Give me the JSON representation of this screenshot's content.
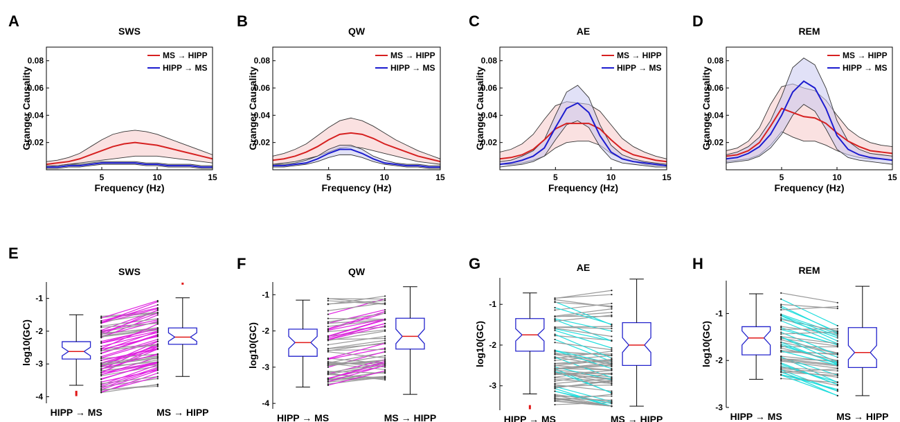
{
  "colors": {
    "ms_to_hipp": "#d62020",
    "hipp_to_ms": "#1c1ccf",
    "ms_fill": "#f5c8c8",
    "hipp_fill": "#c8c8f0",
    "box": "#2222cc",
    "median": "#e01818",
    "increase": "#e020e0",
    "decrease": "#22dddd",
    "neutral": "#999999",
    "outlier": "#e01818"
  },
  "chart_data": [
    {
      "type": "line",
      "panel": "A",
      "title": "SWS",
      "xlabel": "Frequency (Hz)",
      "ylabel": "Granger Causality",
      "xlim": [
        0,
        15
      ],
      "ylim": [
        0,
        0.09
      ],
      "xticks": [
        "5",
        "10",
        "15"
      ],
      "yticks": [
        "0.02",
        "0.04",
        "0.06",
        "0.08"
      ],
      "x": [
        0,
        1,
        2,
        3,
        4,
        5,
        6,
        7,
        8,
        9,
        10,
        11,
        12,
        13,
        14,
        15
      ],
      "series": [
        {
          "name": "MS → HIPP",
          "mean": [
            0.004,
            0.005,
            0.006,
            0.008,
            0.011,
            0.014,
            0.017,
            0.019,
            0.02,
            0.019,
            0.018,
            0.016,
            0.014,
            0.012,
            0.01,
            0.008
          ],
          "upper": [
            0.006,
            0.007,
            0.009,
            0.012,
            0.017,
            0.022,
            0.026,
            0.028,
            0.029,
            0.028,
            0.026,
            0.023,
            0.02,
            0.017,
            0.014,
            0.011
          ],
          "lower": [
            0.002,
            0.003,
            0.004,
            0.005,
            0.006,
            0.007,
            0.008,
            0.009,
            0.01,
            0.01,
            0.01,
            0.009,
            0.008,
            0.007,
            0.006,
            0.005
          ]
        },
        {
          "name": "HIPP → MS",
          "mean": [
            0.002,
            0.002,
            0.003,
            0.003,
            0.004,
            0.005,
            0.005,
            0.005,
            0.005,
            0.004,
            0.004,
            0.003,
            0.003,
            0.003,
            0.002,
            0.002
          ],
          "upper": [
            0.003,
            0.003,
            0.004,
            0.004,
            0.005,
            0.006,
            0.006,
            0.006,
            0.006,
            0.005,
            0.005,
            0.004,
            0.004,
            0.004,
            0.003,
            0.003
          ],
          "lower": [
            0.001,
            0.001,
            0.002,
            0.002,
            0.003,
            0.004,
            0.004,
            0.004,
            0.004,
            0.003,
            0.003,
            0.002,
            0.002,
            0.002,
            0.001,
            0.001
          ]
        }
      ]
    },
    {
      "type": "line",
      "panel": "B",
      "title": "QW",
      "xlabel": "Frequency (Hz)",
      "ylabel": "Granger Causality",
      "xlim": [
        0,
        15
      ],
      "ylim": [
        0,
        0.09
      ],
      "xticks": [
        "5",
        "10",
        "15"
      ],
      "yticks": [
        "0.02",
        "0.04",
        "0.06",
        "0.08"
      ],
      "x": [
        0,
        1,
        2,
        3,
        4,
        5,
        6,
        7,
        8,
        9,
        10,
        11,
        12,
        13,
        14,
        15
      ],
      "series": [
        {
          "name": "MS → HIPP",
          "mean": [
            0.007,
            0.008,
            0.01,
            0.013,
            0.017,
            0.022,
            0.026,
            0.027,
            0.026,
            0.023,
            0.019,
            0.016,
            0.013,
            0.01,
            0.008,
            0.006
          ],
          "upper": [
            0.01,
            0.012,
            0.015,
            0.019,
            0.025,
            0.031,
            0.036,
            0.038,
            0.036,
            0.032,
            0.027,
            0.022,
            0.018,
            0.014,
            0.011,
            0.008
          ],
          "lower": [
            0.004,
            0.005,
            0.006,
            0.008,
            0.01,
            0.013,
            0.016,
            0.017,
            0.016,
            0.014,
            0.012,
            0.01,
            0.008,
            0.006,
            0.005,
            0.004
          ]
        },
        {
          "name": "HIPP → MS",
          "mean": [
            0.003,
            0.003,
            0.004,
            0.005,
            0.008,
            0.012,
            0.015,
            0.015,
            0.012,
            0.008,
            0.005,
            0.004,
            0.003,
            0.003,
            0.002,
            0.002
          ],
          "upper": [
            0.004,
            0.004,
            0.005,
            0.007,
            0.01,
            0.015,
            0.018,
            0.018,
            0.015,
            0.01,
            0.007,
            0.005,
            0.004,
            0.004,
            0.003,
            0.003
          ],
          "lower": [
            0.002,
            0.002,
            0.003,
            0.004,
            0.006,
            0.009,
            0.011,
            0.011,
            0.009,
            0.006,
            0.004,
            0.003,
            0.002,
            0.002,
            0.001,
            0.001
          ]
        }
      ]
    },
    {
      "type": "line",
      "panel": "C",
      "title": "AE",
      "xlabel": "Frequency (Hz)",
      "ylabel": "Granger Causality",
      "xlim": [
        0,
        15
      ],
      "ylim": [
        0,
        0.09
      ],
      "xticks": [
        "5",
        "10",
        "15"
      ],
      "yticks": [
        "0.02",
        "0.04",
        "0.06",
        "0.08"
      ],
      "x": [
        0,
        1,
        2,
        3,
        4,
        5,
        6,
        7,
        8,
        9,
        10,
        11,
        12,
        13,
        14,
        15
      ],
      "series": [
        {
          "name": "MS → HIPP",
          "mean": [
            0.008,
            0.009,
            0.011,
            0.015,
            0.022,
            0.03,
            0.034,
            0.034,
            0.034,
            0.03,
            0.022,
            0.015,
            0.011,
            0.009,
            0.007,
            0.006
          ],
          "upper": [
            0.013,
            0.015,
            0.019,
            0.026,
            0.037,
            0.047,
            0.05,
            0.049,
            0.048,
            0.043,
            0.033,
            0.023,
            0.017,
            0.013,
            0.01,
            0.008
          ],
          "lower": [
            0.004,
            0.004,
            0.005,
            0.007,
            0.01,
            0.016,
            0.02,
            0.021,
            0.021,
            0.018,
            0.012,
            0.008,
            0.006,
            0.004,
            0.003,
            0.003
          ]
        },
        {
          "name": "HIPP → MS",
          "mean": [
            0.004,
            0.005,
            0.007,
            0.01,
            0.016,
            0.031,
            0.045,
            0.049,
            0.042,
            0.025,
            0.013,
            0.008,
            0.006,
            0.005,
            0.004,
            0.003
          ],
          "upper": [
            0.006,
            0.007,
            0.01,
            0.014,
            0.022,
            0.04,
            0.057,
            0.062,
            0.053,
            0.033,
            0.018,
            0.011,
            0.008,
            0.006,
            0.005,
            0.004
          ],
          "lower": [
            0.002,
            0.003,
            0.004,
            0.006,
            0.01,
            0.022,
            0.033,
            0.036,
            0.031,
            0.017,
            0.008,
            0.005,
            0.004,
            0.003,
            0.002,
            0.002
          ]
        }
      ]
    },
    {
      "type": "line",
      "panel": "D",
      "title": "REM",
      "xlabel": "Frequency (Hz)",
      "ylabel": "Granger Causality",
      "xlim": [
        0,
        15
      ],
      "ylim": [
        0,
        0.09
      ],
      "xticks": [
        "5",
        "10",
        "15"
      ],
      "yticks": [
        "0.02",
        "0.04",
        "0.06",
        "0.08"
      ],
      "x": [
        0,
        1,
        2,
        3,
        4,
        5,
        6,
        7,
        8,
        9,
        10,
        11,
        12,
        13,
        14,
        15
      ],
      "series": [
        {
          "name": "MS → HIPP",
          "mean": [
            0.01,
            0.011,
            0.014,
            0.02,
            0.032,
            0.045,
            0.042,
            0.039,
            0.038,
            0.034,
            0.027,
            0.021,
            0.017,
            0.014,
            0.013,
            0.012
          ],
          "upper": [
            0.014,
            0.016,
            0.021,
            0.031,
            0.048,
            0.061,
            0.063,
            0.06,
            0.058,
            0.051,
            0.04,
            0.03,
            0.024,
            0.02,
            0.018,
            0.017
          ],
          "lower": [
            0.006,
            0.007,
            0.008,
            0.011,
            0.018,
            0.028,
            0.024,
            0.021,
            0.021,
            0.018,
            0.014,
            0.011,
            0.009,
            0.008,
            0.008,
            0.007
          ]
        },
        {
          "name": "HIPP → MS",
          "mean": [
            0.008,
            0.009,
            0.012,
            0.017,
            0.026,
            0.04,
            0.057,
            0.065,
            0.06,
            0.045,
            0.025,
            0.015,
            0.011,
            0.009,
            0.008,
            0.007
          ],
          "upper": [
            0.011,
            0.013,
            0.017,
            0.024,
            0.036,
            0.054,
            0.075,
            0.082,
            0.077,
            0.06,
            0.036,
            0.021,
            0.015,
            0.012,
            0.011,
            0.01
          ],
          "lower": [
            0.005,
            0.006,
            0.007,
            0.01,
            0.016,
            0.026,
            0.04,
            0.048,
            0.043,
            0.03,
            0.015,
            0.009,
            0.007,
            0.006,
            0.005,
            0.004
          ]
        }
      ]
    },
    {
      "type": "box",
      "panel": "E",
      "title": "SWS",
      "ylabel": "log10(GC)",
      "ylim": [
        -4.2,
        -0.5
      ],
      "yticks": [
        "-1",
        "-2",
        "-3",
        "-4"
      ],
      "categories": [
        "HIPP → MS",
        "MS → HIPP"
      ],
      "boxes": [
        {
          "name": "HIPP → MS",
          "whisker_low": -3.65,
          "q1": -2.85,
          "median": -2.62,
          "q3": -2.32,
          "whisker_high": -1.5,
          "notch": 0.13,
          "outliers": [
            -3.85,
            -3.95,
            -3.9
          ]
        },
        {
          "name": "MS → HIPP",
          "whisker_low": -3.38,
          "q1": -2.4,
          "median": -2.18,
          "q3": -1.9,
          "whisker_high": -0.98,
          "notch": 0.13,
          "outliers": [
            -0.55
          ]
        }
      ],
      "pairs": {
        "count": 70,
        "seed": 11,
        "left_range": [
          -3.95,
          -1.5
        ],
        "mean_delta": 0.45,
        "spread": 0.35
      }
    },
    {
      "type": "box",
      "panel": "F",
      "title": "QW",
      "ylabel": "log10(GC)",
      "ylim": [
        -4.15,
        -0.65
      ],
      "yticks": [
        "-1",
        "-2",
        "-3",
        "-4"
      ],
      "categories": [
        "HIPP → MS",
        "MS → HIPP"
      ],
      "boxes": [
        {
          "name": "HIPP → MS",
          "whisker_low": -3.55,
          "q1": -2.7,
          "median": -2.32,
          "q3": -1.95,
          "whisker_high": -1.15,
          "notch": 0.17,
          "outliers": []
        },
        {
          "name": "MS → HIPP",
          "whisker_low": -3.75,
          "q1": -2.5,
          "median": -2.15,
          "q3": -1.65,
          "whisker_high": -0.78,
          "notch": 0.2,
          "outliers": []
        }
      ],
      "pairs": {
        "count": 60,
        "seed": 23,
        "left_range": [
          -3.5,
          -1.1
        ],
        "mean_delta": 0.15,
        "spread": 0.35
      }
    },
    {
      "type": "box",
      "panel": "G",
      "title": "AE",
      "ylabel": "log10(GC)",
      "ylim": [
        -3.6,
        -0.35
      ],
      "yticks": [
        "-1",
        "-2",
        "-3"
      ],
      "categories": [
        "HIPP → MS",
        "MS → HIPP"
      ],
      "boxes": [
        {
          "name": "HIPP → MS",
          "whisker_low": -3.2,
          "q1": -2.15,
          "median": -1.75,
          "q3": -1.35,
          "whisker_high": -0.72,
          "notch": 0.15,
          "outliers": [
            -3.5,
            -3.55
          ]
        },
        {
          "name": "MS → HIPP",
          "whisker_low": -3.5,
          "q1": -2.5,
          "median": -2.0,
          "q3": -1.45,
          "whisker_high": -0.38,
          "notch": 0.18,
          "outliers": []
        }
      ],
      "pairs": {
        "count": 75,
        "seed": 37,
        "left_range": [
          -3.5,
          -0.7
        ],
        "mean_delta": -0.2,
        "spread": 0.4
      }
    },
    {
      "type": "box",
      "panel": "H",
      "title": "REM",
      "ylabel": "log10(GC)",
      "ylim": [
        -3.0,
        -0.3
      ],
      "yticks": [
        "-1",
        "-2",
        "-3"
      ],
      "categories": [
        "HIPP → MS",
        "MS → HIPP"
      ],
      "boxes": [
        {
          "name": "HIPP → MS",
          "whisker_low": -2.4,
          "q1": -1.88,
          "median": -1.52,
          "q3": -1.28,
          "whisker_high": -0.58,
          "notch": 0.15,
          "outliers": []
        },
        {
          "name": "MS → HIPP",
          "whisker_low": -2.75,
          "q1": -2.15,
          "median": -1.83,
          "q3": -1.3,
          "whisker_high": -0.42,
          "notch": 0.15,
          "outliers": []
        }
      ],
      "pairs": {
        "count": 55,
        "seed": 53,
        "left_range": [
          -2.4,
          -0.55
        ],
        "mean_delta": -0.25,
        "spread": 0.35
      }
    }
  ]
}
